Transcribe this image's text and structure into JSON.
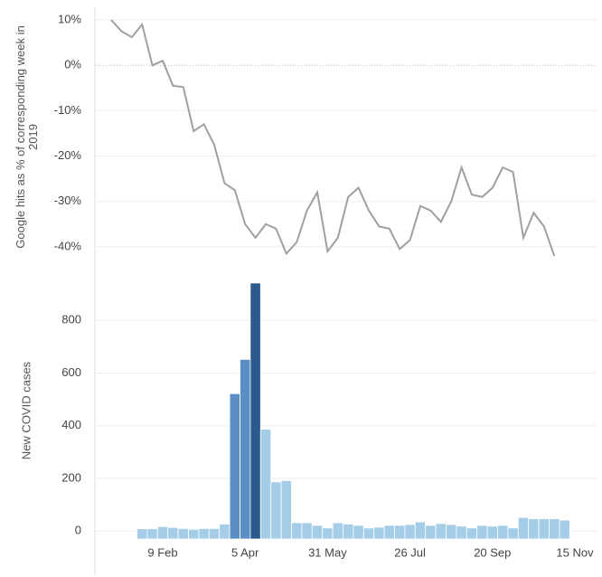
{
  "chart_data": [
    {
      "type": "line",
      "y_label": "Google hits as % of corresponding week in 2019",
      "ylim": [
        -44,
        12.4
      ],
      "yticks": [
        {
          "value": 10,
          "label": "10%"
        },
        {
          "value": 0,
          "label": "0%"
        },
        {
          "value": -10,
          "label": "-10%"
        },
        {
          "value": -20,
          "label": "-20%"
        },
        {
          "value": -30,
          "label": "-30%"
        },
        {
          "value": -40,
          "label": "-40%"
        }
      ],
      "grid": true,
      "color": "#a0a0a0",
      "values": [
        10,
        7.5,
        6.2,
        9,
        0,
        1,
        -4.5,
        -4.8,
        -14.5,
        -13,
        -17.5,
        -26,
        -27.5,
        -35,
        -38,
        -35,
        -36,
        -41.5,
        -39,
        -32,
        -28,
        -41,
        -38,
        -29,
        -27,
        -32,
        -35.5,
        -36,
        -40.5,
        -38.5,
        -31,
        -32,
        -34.5,
        -30,
        -22.5,
        -28.5,
        -29,
        -27,
        -22.5,
        -23.5,
        -38,
        -32.5,
        -35.5,
        -42,
        null,
        null
      ]
    },
    {
      "type": "bar",
      "y_label": "New COVID cases",
      "ylim": [
        -30,
        945
      ],
      "yticks": [
        0,
        200,
        400,
        600,
        800
      ],
      "grid": true,
      "categories": [
        null,
        null,
        null,
        null,
        null,
        "9 Feb",
        null,
        null,
        null,
        null,
        null,
        null,
        null,
        "5 Apr",
        null,
        null,
        null,
        null,
        null,
        null,
        null,
        "31 May",
        null,
        null,
        null,
        null,
        null,
        null,
        null,
        "26 Jul",
        null,
        null,
        null,
        null,
        null,
        null,
        null,
        "20 Sep",
        null,
        null,
        null,
        null,
        null,
        null,
        null,
        "15 Nov"
      ],
      "values": [
        null,
        null,
        null,
        2,
        2,
        10,
        7,
        3,
        0,
        3,
        3,
        20,
        515,
        645,
        935,
        380,
        180,
        185,
        25,
        25,
        15,
        5,
        25,
        20,
        15,
        5,
        8,
        15,
        15,
        18,
        28,
        15,
        22,
        18,
        12,
        5,
        15,
        12,
        15,
        5,
        45,
        40,
        40,
        40,
        35,
        null
      ],
      "colors": [
        null,
        null,
        null,
        "#a6cde8",
        "#a6cde8",
        "#a6cde8",
        "#a6cde8",
        "#a6cde8",
        "#a6cde8",
        "#a6cde8",
        "#a6cde8",
        "#a6cde8",
        "#5b8ec4",
        "#5b8ec4",
        "#2c5a8c",
        "#a6cde8",
        "#a6cde8",
        "#a6cde8",
        "#a6cde8",
        "#a6cde8",
        "#a6cde8",
        "#a6cde8",
        "#a6cde8",
        "#a6cde8",
        "#a6cde8",
        "#a6cde8",
        "#a6cde8",
        "#a6cde8",
        "#a6cde8",
        "#a6cde8",
        "#a6cde8",
        "#a6cde8",
        "#a6cde8",
        "#a6cde8",
        "#a6cde8",
        "#a6cde8",
        "#a6cde8",
        "#a6cde8",
        "#a6cde8",
        "#a6cde8",
        "#a6cde8",
        "#a6cde8",
        "#a6cde8",
        "#a6cde8",
        "#a6cde8",
        null
      ]
    }
  ]
}
